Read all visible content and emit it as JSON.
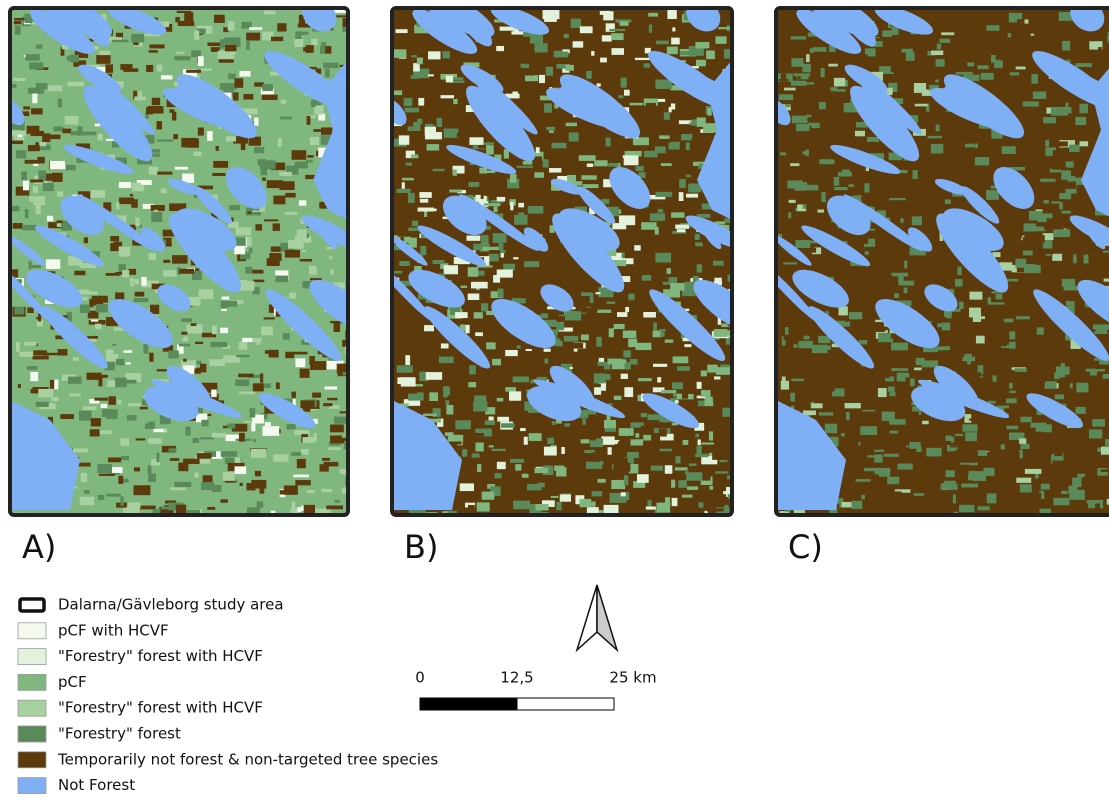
{
  "panels": [
    {
      "label": "A)"
    },
    {
      "label": "B)"
    },
    {
      "label": "C)"
    }
  ],
  "legend": [
    {
      "label": "Dalarna/Gävleborg study area",
      "color": "#ffffff"
    },
    {
      "label": "pCF with HCVF",
      "color": "#f4f9ef"
    },
    {
      "label": "\"Forestry\" forest with HCVF",
      "color": "#e2f2dc"
    },
    {
      "label": "pCF",
      "color": "#7fb77e"
    },
    {
      "label": "\"Forestry\" forest with HCVF",
      "color": "#a8d0a0"
    },
    {
      "label": "\"Forestry\" forest",
      "color": "#5a8a5a"
    },
    {
      "label": "Temporarily not forest & non-targeted tree species",
      "color": "#5c3a0c"
    },
    {
      "label": "Not Forest",
      "color": "#7fb0f5"
    }
  ],
  "scale_bar": {
    "labels": [
      "0",
      "12,5",
      "25 km"
    ]
  }
}
